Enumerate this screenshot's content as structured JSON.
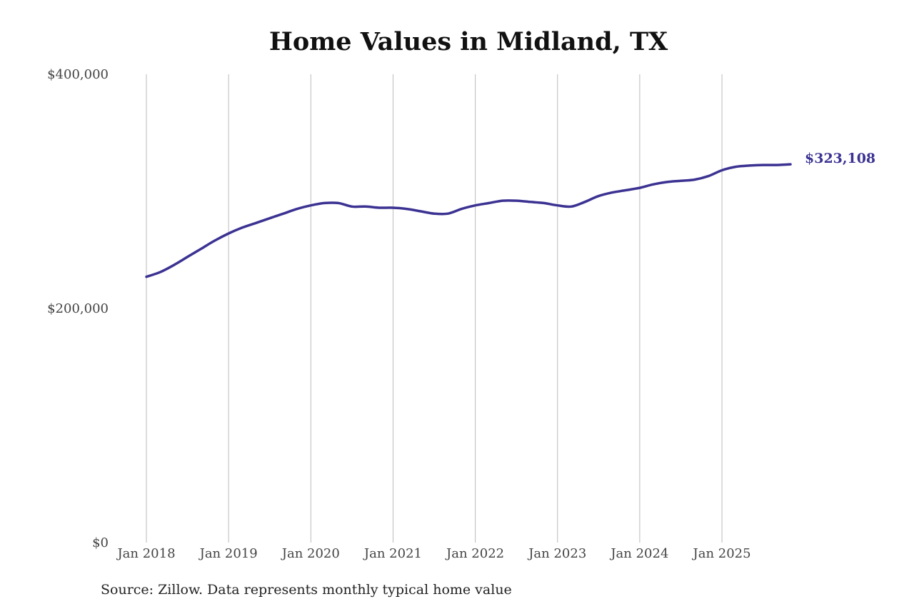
{
  "chart_data": {
    "type": "line",
    "title": "Home Values in Midland, TX",
    "source_note": "Source: Zillow. Data represents monthly typical home value",
    "xlabel": "",
    "ylabel": "",
    "ylim": [
      0,
      400000
    ],
    "y_ticks": [
      {
        "value": 0,
        "label": "$0"
      },
      {
        "value": 200000,
        "label": "$200,000"
      },
      {
        "value": 400000,
        "label": "$400,000"
      }
    ],
    "x_ticks": [
      {
        "year": 2018,
        "label": "Jan 2018"
      },
      {
        "year": 2019,
        "label": "Jan 2019"
      },
      {
        "year": 2020,
        "label": "Jan 2020"
      },
      {
        "year": 2021,
        "label": "Jan 2021"
      },
      {
        "year": 2022,
        "label": "Jan 2022"
      },
      {
        "year": 2023,
        "label": "Jan 2023"
      },
      {
        "year": 2024,
        "label": "Jan 2024"
      },
      {
        "year": 2025,
        "label": "Jan 2025"
      }
    ],
    "xlim": [
      "2018-01",
      "2025-11"
    ],
    "grid": "vertical",
    "line_color": "#3b3292",
    "grid_color": "#bbbbbb",
    "end_label": "$323,108",
    "series": [
      {
        "points": [
          [
            "2018-01",
            227000
          ],
          [
            "2018-03",
            231000
          ],
          [
            "2018-05",
            237000
          ],
          [
            "2018-07",
            244000
          ],
          [
            "2018-09",
            251000
          ],
          [
            "2018-11",
            258000
          ],
          [
            "2019-01",
            264000
          ],
          [
            "2019-03",
            269000
          ],
          [
            "2019-05",
            273000
          ],
          [
            "2019-07",
            277000
          ],
          [
            "2019-09",
            281000
          ],
          [
            "2019-11",
            285000
          ],
          [
            "2020-01",
            288000
          ],
          [
            "2020-03",
            290000
          ],
          [
            "2020-05",
            290000
          ],
          [
            "2020-07",
            287000
          ],
          [
            "2020-09",
            287000
          ],
          [
            "2020-11",
            286000
          ],
          [
            "2021-01",
            286000
          ],
          [
            "2021-03",
            285000
          ],
          [
            "2021-05",
            283000
          ],
          [
            "2021-07",
            281000
          ],
          [
            "2021-09",
            281000
          ],
          [
            "2021-11",
            285000
          ],
          [
            "2022-01",
            288000
          ],
          [
            "2022-03",
            290000
          ],
          [
            "2022-05",
            292000
          ],
          [
            "2022-07",
            292000
          ],
          [
            "2022-09",
            291000
          ],
          [
            "2022-11",
            290000
          ],
          [
            "2023-01",
            288000
          ],
          [
            "2023-03",
            287000
          ],
          [
            "2023-05",
            291000
          ],
          [
            "2023-07",
            296000
          ],
          [
            "2023-09",
            299000
          ],
          [
            "2023-11",
            301000
          ],
          [
            "2024-01",
            303000
          ],
          [
            "2024-03",
            306000
          ],
          [
            "2024-05",
            308000
          ],
          [
            "2024-07",
            309000
          ],
          [
            "2024-09",
            310000
          ],
          [
            "2024-11",
            313000
          ],
          [
            "2025-01",
            318000
          ],
          [
            "2025-03",
            321000
          ],
          [
            "2025-05",
            322000
          ],
          [
            "2025-07",
            322500
          ],
          [
            "2025-09",
            322500
          ],
          [
            "2025-11",
            323108
          ]
        ]
      }
    ]
  }
}
